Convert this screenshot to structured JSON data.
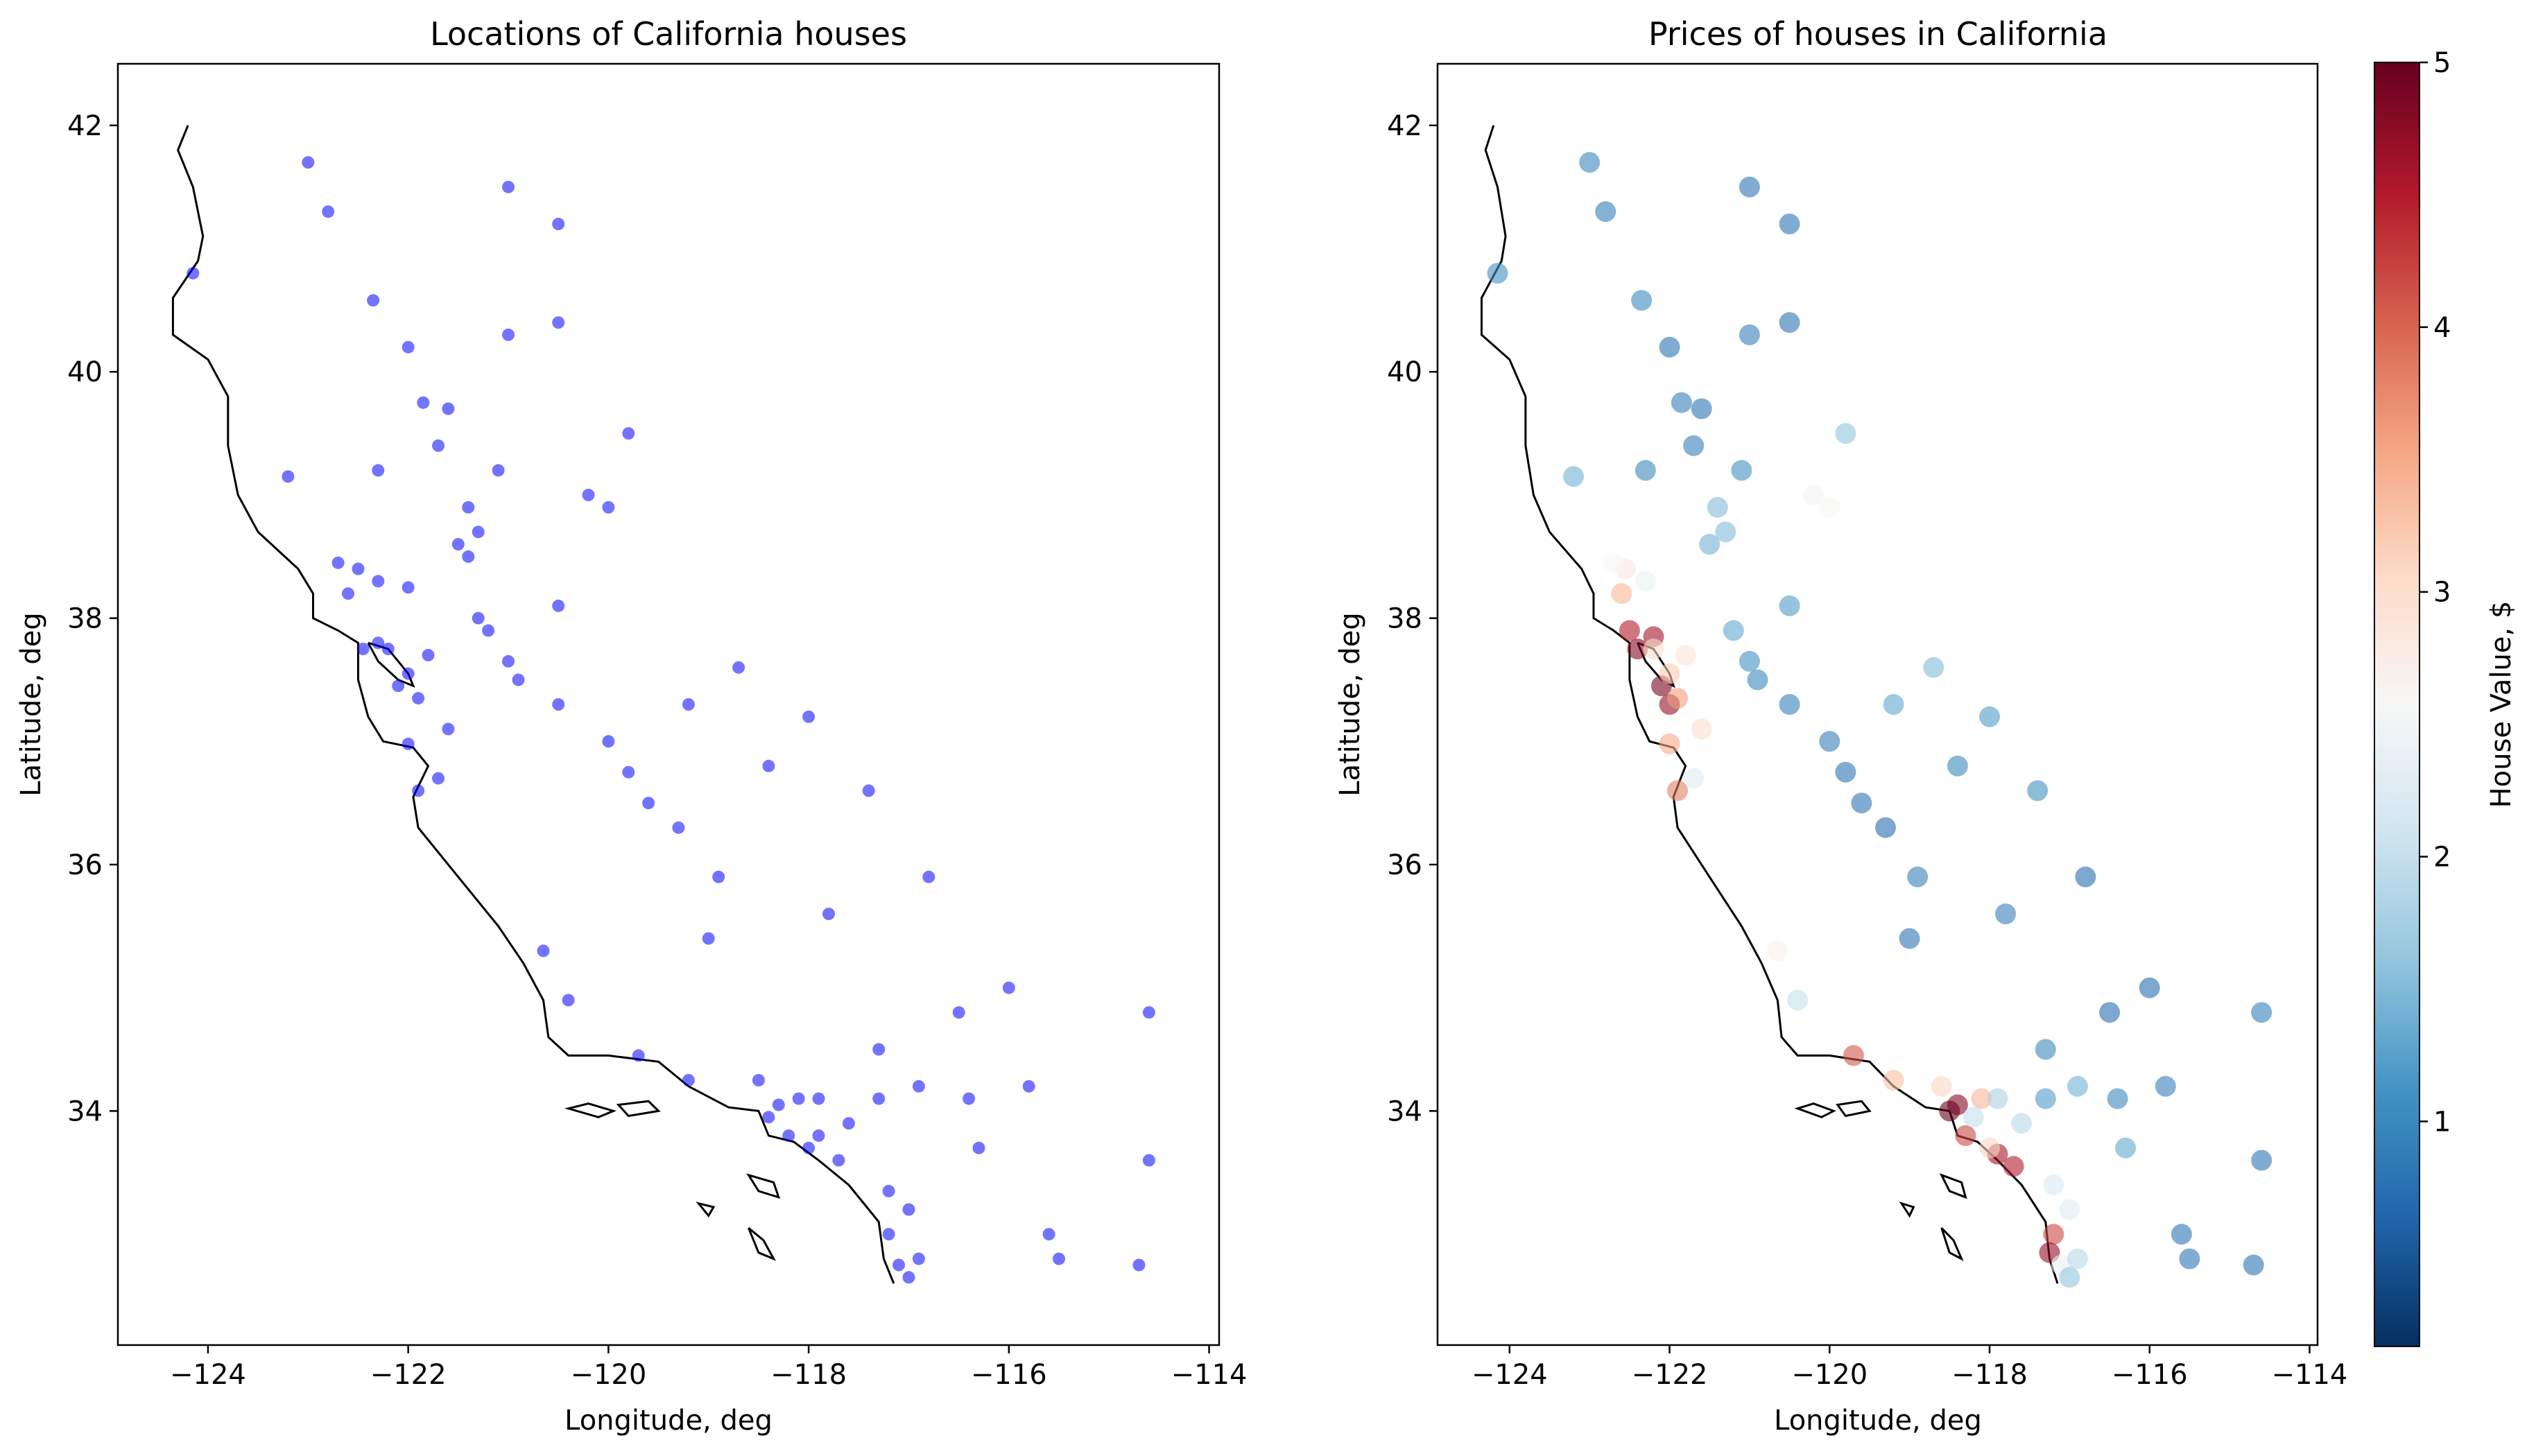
{
  "figure": {
    "panels": [
      {
        "title": "Locations of California houses",
        "xlabel": "Longitude, deg",
        "ylabel": "Latitude, deg"
      },
      {
        "title": "Prices of houses in California",
        "xlabel": "Longitude, deg",
        "ylabel": "Latitude, deg"
      }
    ],
    "x_tick_labels": [
      "−124",
      "−122",
      "−120",
      "−118",
      "−116",
      "−114"
    ],
    "y_tick_labels": [
      "34",
      "36",
      "38",
      "40",
      "42"
    ],
    "colorbar": {
      "label": "House Value, $",
      "tick_labels": [
        "1",
        "2",
        "3",
        "4",
        "5"
      ],
      "cmap": "RdBu_r"
    }
  },
  "chart_data": [
    {
      "type": "scatter",
      "title": "Locations of California houses",
      "xlabel": "Longitude, deg",
      "ylabel": "Latitude, deg",
      "xlim": [
        -124.9,
        -113.9
      ],
      "ylim": [
        32.1,
        42.5
      ],
      "xticks": [
        -124,
        -122,
        -120,
        -118,
        -116,
        -114
      ],
      "yticks": [
        34,
        36,
        38,
        40,
        42
      ],
      "marker_color": "#0000ff",
      "outline_color": "#000000",
      "grid": false,
      "series": [
        {
          "points": [
            [
              -122.3,
              37.8
            ],
            [
              -122.2,
              37.75
            ],
            [
              -122.0,
              37.55
            ],
            [
              -121.9,
              37.35
            ],
            [
              -122.1,
              37.45
            ],
            [
              -122.45,
              37.75
            ],
            [
              -122.5,
              38.4
            ],
            [
              -122.7,
              38.45
            ],
            [
              -122.0,
              38.25
            ],
            [
              -121.5,
              38.6
            ],
            [
              -121.3,
              38.7
            ],
            [
              -121.4,
              38.5
            ],
            [
              -121.3,
              38.0
            ],
            [
              -121.0,
              37.65
            ],
            [
              -120.5,
              37.3
            ],
            [
              -119.8,
              36.75
            ],
            [
              -119.3,
              36.3
            ],
            [
              -119.0,
              35.4
            ],
            [
              -118.3,
              34.05
            ],
            [
              -118.1,
              34.1
            ],
            [
              -117.9,
              33.8
            ],
            [
              -117.7,
              33.6
            ],
            [
              -118.4,
              33.95
            ],
            [
              -117.3,
              34.1
            ],
            [
              -117.2,
              33.0
            ],
            [
              -117.1,
              32.75
            ],
            [
              -117.0,
              32.65
            ],
            [
              -116.9,
              32.8
            ],
            [
              -117.2,
              33.35
            ],
            [
              -118.5,
              34.25
            ],
            [
              -119.2,
              34.25
            ],
            [
              -119.7,
              34.45
            ],
            [
              -120.4,
              34.9
            ],
            [
              -120.65,
              35.3
            ],
            [
              -121.9,
              36.6
            ],
            [
              -121.7,
              36.7
            ],
            [
              -122.0,
              36.98
            ],
            [
              -121.6,
              37.1
            ],
            [
              -122.35,
              40.58
            ],
            [
              -121.85,
              39.75
            ],
            [
              -121.6,
              39.7
            ],
            [
              -121.1,
              39.2
            ],
            [
              -120.2,
              39.0
            ],
            [
              -119.8,
              39.5
            ],
            [
              -124.15,
              40.8
            ],
            [
              -123.2,
              39.15
            ],
            [
              -120.0,
              38.9
            ],
            [
              -120.5,
              38.1
            ],
            [
              -118.7,
              37.6
            ],
            [
              -117.4,
              36.6
            ],
            [
              -117.8,
              35.6
            ],
            [
              -116.3,
              33.7
            ],
            [
              -115.5,
              32.8
            ],
            [
              -114.6,
              34.8
            ],
            [
              -114.6,
              33.6
            ],
            [
              -117.3,
              34.5
            ],
            [
              -116.9,
              34.2
            ],
            [
              -121.4,
              38.9
            ],
            [
              -122.6,
              38.2
            ],
            [
              -121.8,
              37.7
            ],
            [
              -122.3,
              38.3
            ],
            [
              -121.2,
              37.9
            ],
            [
              -120.9,
              37.5
            ],
            [
              -120.0,
              37.0
            ],
            [
              -119.6,
              36.5
            ],
            [
              -118.9,
              35.9
            ],
            [
              -117.6,
              33.9
            ],
            [
              -117.9,
              34.1
            ],
            [
              -118.2,
              33.8
            ],
            [
              -118.0,
              33.7
            ],
            [
              -117.0,
              33.2
            ],
            [
              -116.5,
              34.8
            ],
            [
              -116.4,
              34.1
            ],
            [
              -116.0,
              35.0
            ],
            [
              -115.6,
              33.0
            ],
            [
              -114.7,
              32.75
            ],
            [
              -123.0,
              41.7
            ],
            [
              -122.8,
              41.3
            ],
            [
              -121.0,
              41.5
            ],
            [
              -120.5,
              41.2
            ],
            [
              -122.0,
              40.2
            ],
            [
              -121.0,
              40.3
            ],
            [
              -120.5,
              40.4
            ],
            [
              -122.3,
              39.2
            ],
            [
              -121.7,
              39.4
            ],
            [
              -119.2,
              37.3
            ],
            [
              -118.4,
              36.8
            ],
            [
              -118.0,
              37.2
            ],
            [
              -116.8,
              35.9
            ],
            [
              -115.8,
              34.2
            ]
          ]
        }
      ]
    },
    {
      "type": "scatter",
      "title": "Prices of houses in California",
      "xlabel": "Longitude, deg",
      "ylabel": "Latitude, deg",
      "xlim": [
        -124.9,
        -113.9
      ],
      "ylim": [
        32.1,
        42.5
      ],
      "xticks": [
        -124,
        -122,
        -120,
        -118,
        -116,
        -114
      ],
      "yticks": [
        34,
        36,
        38,
        40,
        42
      ],
      "colorbar": {
        "label": "House Value, $",
        "range": [
          0.15,
          5
        ],
        "ticks": [
          1,
          2,
          3,
          4,
          5
        ],
        "cmap": "RdBu_r"
      },
      "grid": false,
      "series": [
        {
          "points": [
            [
              -122.4,
              37.75,
              4.8
            ],
            [
              -122.2,
              37.85,
              4.6
            ],
            [
              -122.1,
              37.45,
              4.9
            ],
            [
              -122.0,
              37.3,
              4.7
            ],
            [
              -122.5,
              37.9,
              4.5
            ],
            [
              -122.0,
              37.55,
              3.2
            ],
            [
              -121.9,
              37.35,
              3.6
            ],
            [
              -122.2,
              37.75,
              3.0
            ],
            [
              -122.55,
              38.4,
              2.8
            ],
            [
              -122.7,
              38.45,
              2.6
            ],
            [
              -121.5,
              38.6,
              1.4
            ],
            [
              -121.3,
              38.7,
              1.5
            ],
            [
              -121.0,
              37.65,
              1.1
            ],
            [
              -120.5,
              37.3,
              0.9
            ],
            [
              -119.8,
              36.75,
              0.8
            ],
            [
              -119.3,
              36.3,
              0.7
            ],
            [
              -119.0,
              35.4,
              0.8
            ],
            [
              -118.4,
              34.05,
              4.8
            ],
            [
              -118.5,
              34.0,
              5.0
            ],
            [
              -118.3,
              33.8,
              4.2
            ],
            [
              -118.1,
              34.1,
              3.4
            ],
            [
              -117.9,
              33.65,
              4.6
            ],
            [
              -117.7,
              33.55,
              4.5
            ],
            [
              -118.2,
              33.95,
              2.0
            ],
            [
              -117.9,
              34.1,
              1.8
            ],
            [
              -117.3,
              34.1,
              1.2
            ],
            [
              -117.2,
              33.0,
              4.2
            ],
            [
              -117.25,
              32.85,
              4.7
            ],
            [
              -117.1,
              32.75,
              2.4
            ],
            [
              -117.0,
              32.65,
              1.6
            ],
            [
              -116.9,
              32.8,
              1.9
            ],
            [
              -117.2,
              33.4,
              2.2
            ],
            [
              -118.6,
              34.2,
              3.1
            ],
            [
              -119.2,
              34.25,
              3.3
            ],
            [
              -119.7,
              34.45,
              4.1
            ],
            [
              -120.4,
              34.9,
              2.0
            ],
            [
              -120.65,
              35.3,
              2.7
            ],
            [
              -121.9,
              36.6,
              3.8
            ],
            [
              -121.7,
              36.7,
              2.3
            ],
            [
              -122.0,
              36.98,
              3.5
            ],
            [
              -121.6,
              37.1,
              3.0
            ],
            [
              -122.35,
              40.58,
              1.0
            ],
            [
              -121.85,
              39.75,
              0.9
            ],
            [
              -121.6,
              39.7,
              0.8
            ],
            [
              -121.1,
              39.2,
              1.1
            ],
            [
              -120.2,
              39.0,
              2.5
            ],
            [
              -119.8,
              39.5,
              1.6
            ],
            [
              -124.15,
              40.8,
              1.1
            ],
            [
              -123.2,
              39.15,
              1.4
            ],
            [
              -120.0,
              38.9,
              2.6
            ],
            [
              -120.5,
              38.1,
              1.2
            ],
            [
              -118.7,
              37.6,
              1.5
            ],
            [
              -117.4,
              36.6,
              1.1
            ],
            [
              -117.8,
              35.6,
              0.9
            ],
            [
              -116.3,
              33.7,
              1.3
            ],
            [
              -115.5,
              32.8,
              0.8
            ],
            [
              -114.6,
              34.8,
              0.9
            ],
            [
              -114.6,
              33.6,
              0.8
            ],
            [
              -117.3,
              34.5,
              1.0
            ],
            [
              -116.9,
              34.2,
              1.4
            ],
            [
              -121.4,
              38.9,
              1.5
            ],
            [
              -122.6,
              38.2,
              3.4
            ],
            [
              -121.8,
              37.7,
              2.9
            ],
            [
              -122.3,
              38.3,
              2.4
            ],
            [
              -121.2,
              37.9,
              1.3
            ],
            [
              -120.9,
              37.5,
              1.0
            ],
            [
              -120.0,
              37.0,
              0.9
            ],
            [
              -119.6,
              36.5,
              0.8
            ],
            [
              -118.9,
              35.9,
              0.9
            ],
            [
              -117.6,
              33.9,
              1.9
            ],
            [
              -118.0,
              33.7,
              3.1
            ],
            [
              -117.0,
              33.2,
              2.3
            ],
            [
              -116.5,
              34.8,
              0.7
            ],
            [
              -116.4,
              34.1,
              1.0
            ],
            [
              -116.0,
              35.0,
              0.7
            ],
            [
              -115.6,
              33.0,
              0.8
            ],
            [
              -114.7,
              32.75,
              0.8
            ],
            [
              -123.0,
              41.7,
              1.0
            ],
            [
              -122.8,
              41.3,
              0.9
            ],
            [
              -121.0,
              41.5,
              0.8
            ],
            [
              -120.5,
              41.2,
              0.8
            ],
            [
              -122.0,
              40.2,
              0.8
            ],
            [
              -121.0,
              40.3,
              0.9
            ],
            [
              -120.5,
              40.4,
              0.8
            ],
            [
              -122.3,
              39.2,
              1.0
            ],
            [
              -121.7,
              39.4,
              0.9
            ],
            [
              -119.2,
              37.3,
              1.3
            ],
            [
              -118.4,
              36.8,
              1.0
            ],
            [
              -118.0,
              37.2,
              1.2
            ],
            [
              -116.8,
              35.9,
              0.7
            ],
            [
              -115.8,
              34.2,
              0.9
            ]
          ]
        }
      ]
    }
  ]
}
